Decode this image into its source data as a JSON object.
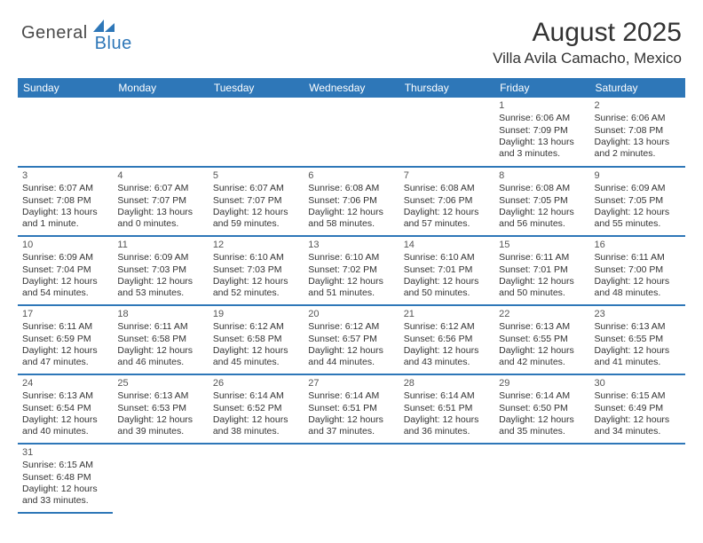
{
  "logo": {
    "part1": "General",
    "part2": "Blue"
  },
  "title": "August 2025",
  "location": "Villa Avila Camacho, Mexico",
  "colors": {
    "header_bg": "#2e77b8",
    "row_divider": "#c9c9c9",
    "row_bottom": "#2e77b8",
    "text": "#333333",
    "logo_gray": "#4a4a4a",
    "logo_blue": "#2e77b8"
  },
  "weekdays": [
    "Sunday",
    "Monday",
    "Tuesday",
    "Wednesday",
    "Thursday",
    "Friday",
    "Saturday"
  ],
  "weeks": [
    [
      null,
      null,
      null,
      null,
      null,
      {
        "d": "1",
        "sr": "6:06 AM",
        "ss": "7:09 PM",
        "dl": "13 hours and 3 minutes."
      },
      {
        "d": "2",
        "sr": "6:06 AM",
        "ss": "7:08 PM",
        "dl": "13 hours and 2 minutes."
      }
    ],
    [
      {
        "d": "3",
        "sr": "6:07 AM",
        "ss": "7:08 PM",
        "dl": "13 hours and 1 minute."
      },
      {
        "d": "4",
        "sr": "6:07 AM",
        "ss": "7:07 PM",
        "dl": "13 hours and 0 minutes."
      },
      {
        "d": "5",
        "sr": "6:07 AM",
        "ss": "7:07 PM",
        "dl": "12 hours and 59 minutes."
      },
      {
        "d": "6",
        "sr": "6:08 AM",
        "ss": "7:06 PM",
        "dl": "12 hours and 58 minutes."
      },
      {
        "d": "7",
        "sr": "6:08 AM",
        "ss": "7:06 PM",
        "dl": "12 hours and 57 minutes."
      },
      {
        "d": "8",
        "sr": "6:08 AM",
        "ss": "7:05 PM",
        "dl": "12 hours and 56 minutes."
      },
      {
        "d": "9",
        "sr": "6:09 AM",
        "ss": "7:05 PM",
        "dl": "12 hours and 55 minutes."
      }
    ],
    [
      {
        "d": "10",
        "sr": "6:09 AM",
        "ss": "7:04 PM",
        "dl": "12 hours and 54 minutes."
      },
      {
        "d": "11",
        "sr": "6:09 AM",
        "ss": "7:03 PM",
        "dl": "12 hours and 53 minutes."
      },
      {
        "d": "12",
        "sr": "6:10 AM",
        "ss": "7:03 PM",
        "dl": "12 hours and 52 minutes."
      },
      {
        "d": "13",
        "sr": "6:10 AM",
        "ss": "7:02 PM",
        "dl": "12 hours and 51 minutes."
      },
      {
        "d": "14",
        "sr": "6:10 AM",
        "ss": "7:01 PM",
        "dl": "12 hours and 50 minutes."
      },
      {
        "d": "15",
        "sr": "6:11 AM",
        "ss": "7:01 PM",
        "dl": "12 hours and 50 minutes."
      },
      {
        "d": "16",
        "sr": "6:11 AM",
        "ss": "7:00 PM",
        "dl": "12 hours and 48 minutes."
      }
    ],
    [
      {
        "d": "17",
        "sr": "6:11 AM",
        "ss": "6:59 PM",
        "dl": "12 hours and 47 minutes."
      },
      {
        "d": "18",
        "sr": "6:11 AM",
        "ss": "6:58 PM",
        "dl": "12 hours and 46 minutes."
      },
      {
        "d": "19",
        "sr": "6:12 AM",
        "ss": "6:58 PM",
        "dl": "12 hours and 45 minutes."
      },
      {
        "d": "20",
        "sr": "6:12 AM",
        "ss": "6:57 PM",
        "dl": "12 hours and 44 minutes."
      },
      {
        "d": "21",
        "sr": "6:12 AM",
        "ss": "6:56 PM",
        "dl": "12 hours and 43 minutes."
      },
      {
        "d": "22",
        "sr": "6:13 AM",
        "ss": "6:55 PM",
        "dl": "12 hours and 42 minutes."
      },
      {
        "d": "23",
        "sr": "6:13 AM",
        "ss": "6:55 PM",
        "dl": "12 hours and 41 minutes."
      }
    ],
    [
      {
        "d": "24",
        "sr": "6:13 AM",
        "ss": "6:54 PM",
        "dl": "12 hours and 40 minutes."
      },
      {
        "d": "25",
        "sr": "6:13 AM",
        "ss": "6:53 PM",
        "dl": "12 hours and 39 minutes."
      },
      {
        "d": "26",
        "sr": "6:14 AM",
        "ss": "6:52 PM",
        "dl": "12 hours and 38 minutes."
      },
      {
        "d": "27",
        "sr": "6:14 AM",
        "ss": "6:51 PM",
        "dl": "12 hours and 37 minutes."
      },
      {
        "d": "28",
        "sr": "6:14 AM",
        "ss": "6:51 PM",
        "dl": "12 hours and 36 minutes."
      },
      {
        "d": "29",
        "sr": "6:14 AM",
        "ss": "6:50 PM",
        "dl": "12 hours and 35 minutes."
      },
      {
        "d": "30",
        "sr": "6:15 AM",
        "ss": "6:49 PM",
        "dl": "12 hours and 34 minutes."
      }
    ],
    [
      {
        "d": "31",
        "sr": "6:15 AM",
        "ss": "6:48 PM",
        "dl": "12 hours and 33 minutes."
      },
      null,
      null,
      null,
      null,
      null,
      null
    ]
  ]
}
